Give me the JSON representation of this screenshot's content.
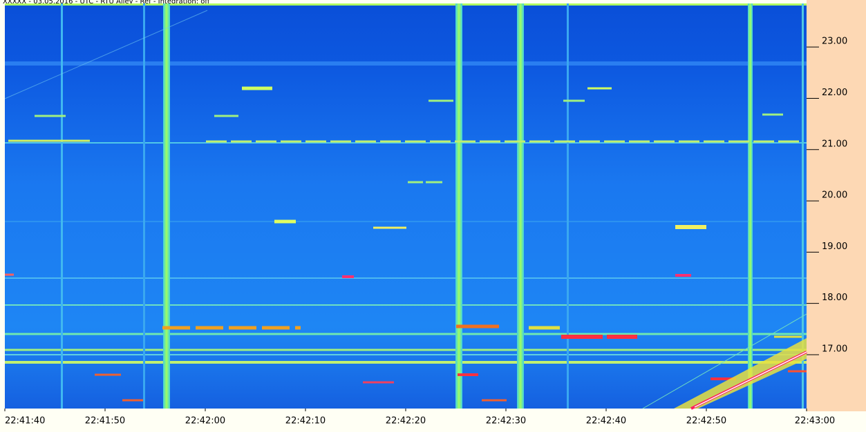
{
  "chart_data": {
    "type": "spectrogram",
    "title": "XXXXX - 03.05.2016 - UTC - RTU Alley - Ref - Integration: off",
    "xlim": [
      "22:41:40",
      "22:43:00"
    ],
    "xticks": [
      "22:41:40",
      "22:41:50",
      "22:42:00",
      "22:42:10",
      "22:42:20",
      "22:42:30",
      "22:42:40",
      "22:42:50",
      "22:43:00"
    ],
    "ylim": [
      15.95,
      23.85
    ],
    "yticks": [
      {
        "value": 17,
        "label": "17.00"
      },
      {
        "value": 18,
        "label": "18.00"
      },
      {
        "value": 19,
        "label": "19.00"
      },
      {
        "value": 20,
        "label": "20.00"
      },
      {
        "value": 21,
        "label": "21.00"
      },
      {
        "value": 22,
        "label": "22.00"
      },
      {
        "value": 23,
        "label": "23.00"
      }
    ]
  }
}
